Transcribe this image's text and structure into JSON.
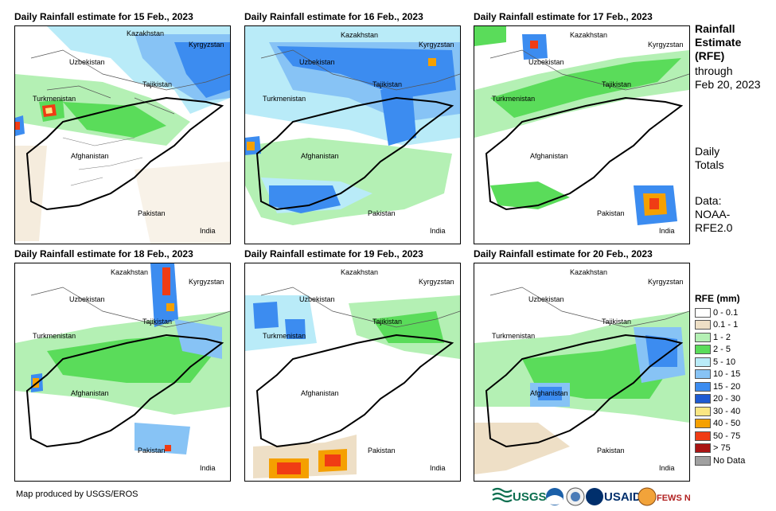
{
  "panels": [
    {
      "title": "Daily Rainfall estimate for 15 Feb., 2023",
      "day": "15"
    },
    {
      "title": "Daily Rainfall estimate for 16 Feb., 2023",
      "day": "16"
    },
    {
      "title": "Daily Rainfall estimate for 17 Feb., 2023",
      "day": "17"
    },
    {
      "title": "Daily Rainfall estimate for 18 Feb., 2023",
      "day": "18"
    },
    {
      "title": "Daily Rainfall estimate for 19 Feb., 2023",
      "day": "19"
    },
    {
      "title": "Daily Rainfall estimate for 20 Feb., 2023",
      "day": "20"
    }
  ],
  "map_labels": {
    "kazakhstan": "Kazakhstan",
    "kyrgyzstan": "Kyrgyzstan",
    "uzbekistan": "Uzbekistan",
    "tajikistan": "Tajikistan",
    "turkmenistan": "Turkmenistan",
    "afghanistan": "Afghanistan",
    "pakistan": "Pakistan",
    "india": "India"
  },
  "side": {
    "title_line1": "Rainfall",
    "title_line2": "Estimate",
    "title_line3": "(RFE)",
    "through": "through",
    "date": "Feb 20, 2023",
    "daily1": "Daily",
    "daily2": "Totals",
    "data1": "Data:",
    "data2": "NOAA-",
    "data3": "RFE2.0"
  },
  "legend": {
    "title": "RFE (mm)",
    "items": [
      {
        "label": "0 - 0.1",
        "color": "#ffffff"
      },
      {
        "label": "0.1 - 1",
        "color": "#eedfc6"
      },
      {
        "label": "1 - 2",
        "color": "#b4f0b4"
      },
      {
        "label": "2 - 5",
        "color": "#5adc5a"
      },
      {
        "label": "5 - 10",
        "color": "#b9ebf8"
      },
      {
        "label": "10 - 15",
        "color": "#87c3f5"
      },
      {
        "label": "15 - 20",
        "color": "#3c8cf0"
      },
      {
        "label": "20 - 30",
        "color": "#1e5ad2"
      },
      {
        "label": "30 - 40",
        "color": "#fae682"
      },
      {
        "label": "40 - 50",
        "color": "#f5a000"
      },
      {
        "label": "50 - 75",
        "color": "#f03c14"
      },
      {
        "label": "> 75",
        "color": "#aa1414"
      },
      {
        "label": "No Data",
        "color": "#a0a0a0"
      }
    ]
  },
  "footer": "Map produced by USGS/EROS",
  "logos": {
    "usgs": "USGS",
    "usaid": "USAID",
    "fewsnet": "FEWS NET"
  }
}
